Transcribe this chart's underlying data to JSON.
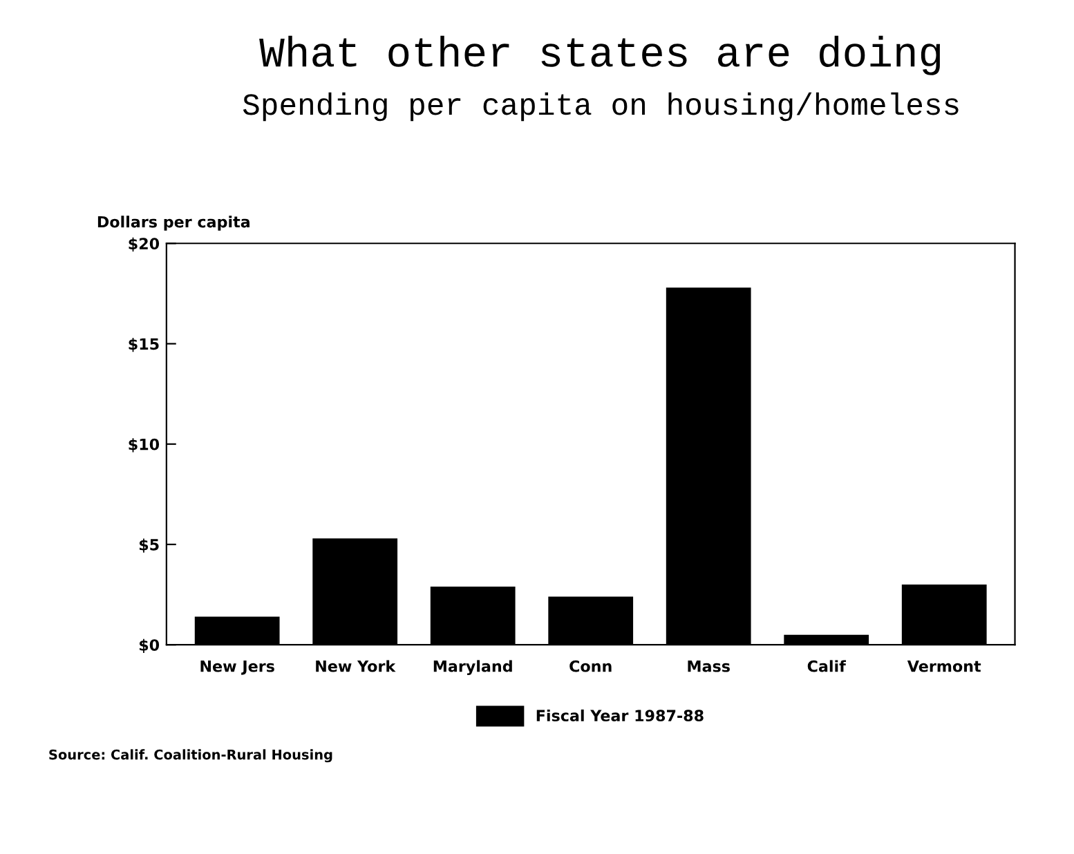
{
  "chart_data": {
    "type": "bar",
    "title": "What other states are doing",
    "subtitle": "Spending per capita on housing/homeless",
    "ylabel": "Dollars per capita",
    "categories": [
      "New Jers",
      "New York",
      "Maryland",
      "Conn",
      "Mass",
      "Calif",
      "Vermont"
    ],
    "series": [
      {
        "name": "Fiscal Year 1987-88",
        "color": "#000000",
        "values": [
          1.4,
          5.3,
          2.9,
          2.4,
          17.8,
          0.5,
          3.0
        ]
      }
    ],
    "ylim": [
      0,
      20
    ],
    "yticks": [
      {
        "value": 0,
        "label": "$0"
      },
      {
        "value": 5,
        "label": "$5"
      },
      {
        "value": 10,
        "label": "$10"
      },
      {
        "value": 15,
        "label": "$15"
      },
      {
        "value": 20,
        "label": "$20"
      }
    ],
    "grid": false,
    "legend": "bottom",
    "annotations": [
      "Source: Calif. Coalition-Rural Housing"
    ]
  }
}
